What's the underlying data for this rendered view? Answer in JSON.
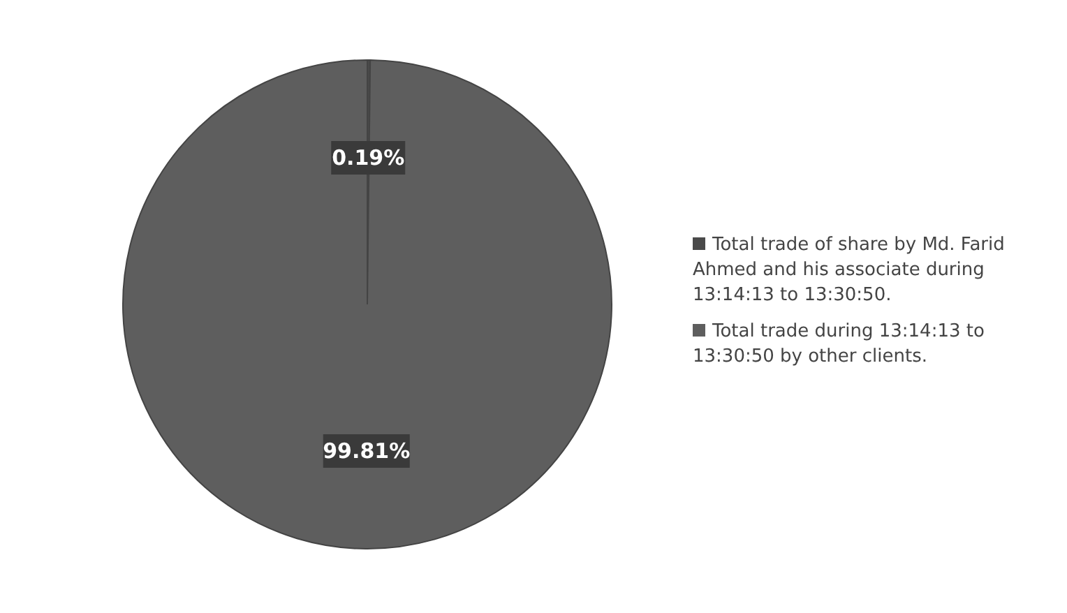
{
  "chart_data": {
    "type": "pie",
    "categories": [
      "Total trade of share by Md. Farid Ahmed and his associate during 13:14:13 to 13:30:50.",
      "Total trade during 13:14:13 to 13:30:50 by other clients."
    ],
    "values": [
      0.19,
      99.81
    ],
    "colors": [
      "#4a4a4a",
      "#5e5e5e"
    ],
    "value_labels": [
      "0.19%",
      "99.81%"
    ],
    "legend": "right"
  }
}
